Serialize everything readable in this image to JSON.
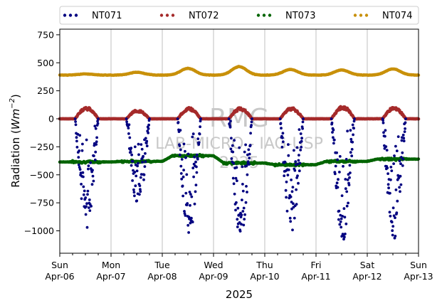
{
  "chart_data": {
    "type": "scatter",
    "xlabel": "2025",
    "ylabel": "Radiation (",
    "ylabel_unit": "Wm",
    "ylabel_exp": "−2",
    "ylabel_close": ")",
    "ylim": [
      -1200,
      800
    ],
    "yticks": [
      -1000,
      -750,
      -500,
      -250,
      0,
      250,
      500,
      750
    ],
    "ytick_labels": [
      "−1000",
      "−750",
      "−500",
      "−250",
      "0",
      "250",
      "500",
      "750"
    ],
    "xlim": [
      "2025-04-06 00:00",
      "2025-04-13 00:00"
    ],
    "x_days": [
      "2025-04-06",
      "2025-04-07",
      "2025-04-08",
      "2025-04-09",
      "2025-04-10",
      "2025-04-11",
      "2025-04-12",
      "2025-04-13"
    ],
    "xtick_labels": [
      [
        "Sun",
        "Apr-06"
      ],
      [
        "Mon",
        "Apr-07"
      ],
      [
        "Tue",
        "Apr-08"
      ],
      [
        "Wed",
        "Apr-09"
      ],
      [
        "Thu",
        "Apr-10"
      ],
      [
        "Fri",
        "Apr-11"
      ],
      [
        "Sat",
        "Apr-12"
      ],
      [
        "Sun",
        "Apr-13"
      ]
    ],
    "grid": "vertical",
    "legend_position": "top",
    "watermark": [
      "RMG",
      "LAB-MICRO - IAG-USP",
      "2025"
    ],
    "series": [
      {
        "name": "NT071",
        "color": "#000080",
        "daytime_min_wm2": [
          -980,
          -780,
          -1060,
          -1060,
          -1020,
          -1090,
          -1070
        ],
        "night_value_wm2": 0
      },
      {
        "name": "NT072",
        "color": "#a52a2a",
        "daytime_max_wm2": [
          105,
          80,
          100,
          100,
          100,
          115,
          105
        ],
        "night_value_wm2": 0
      },
      {
        "name": "NT073",
        "color": "#006400",
        "daily_level_wm2": [
          -385,
          -380,
          -330,
          -395,
          -410,
          -380,
          -360
        ],
        "end_value_wm2": -345
      },
      {
        "name": "NT074",
        "color": "#c8900a",
        "daily_peak_wm2": [
          400,
          415,
          450,
          465,
          440,
          435,
          445
        ],
        "baseline_wm2": 390
      }
    ]
  }
}
